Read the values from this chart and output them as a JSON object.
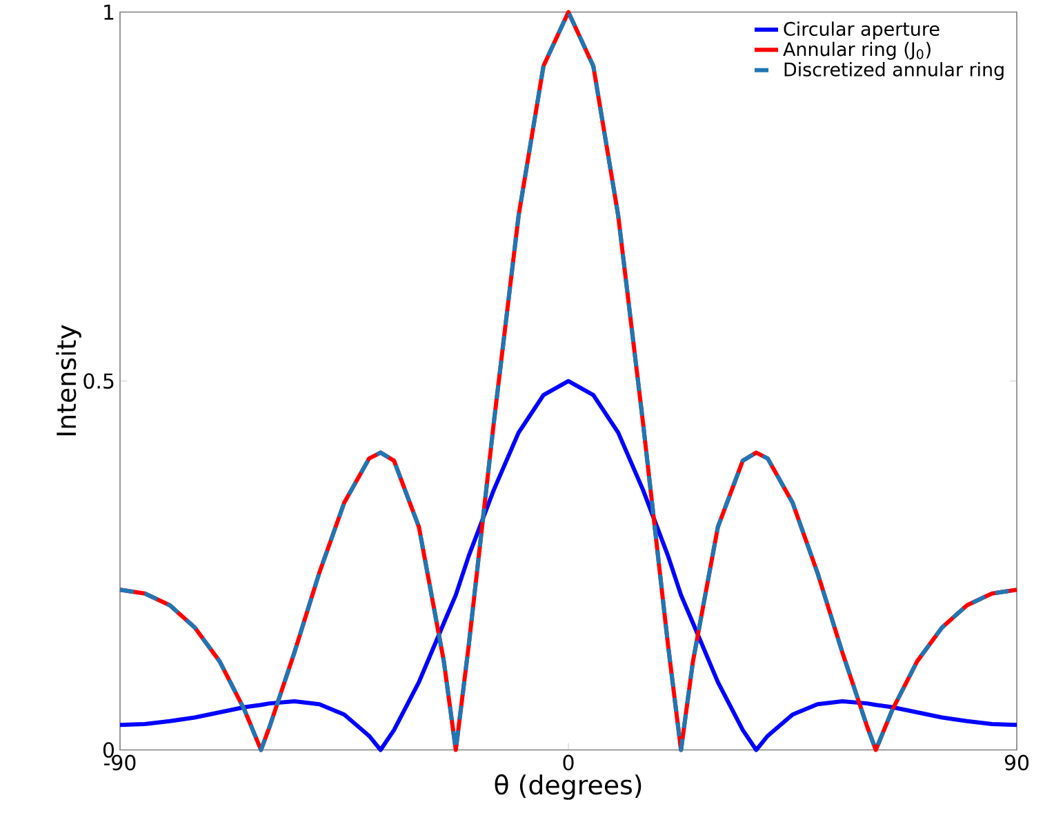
{
  "chart_data": {
    "type": "line",
    "xlabel": "θ (degrees)",
    "ylabel": "Intensity",
    "x": [
      -90,
      -85,
      -80,
      -75,
      -70,
      -65,
      -61.7,
      -60,
      -55,
      -50,
      -45,
      -40,
      -37.7,
      -35,
      -30,
      -25,
      -22.6,
      -20,
      -15,
      -10,
      -5,
      0,
      5,
      10,
      15,
      20,
      22.6,
      25,
      30,
      35,
      37.7,
      40,
      45,
      50,
      55,
      60,
      61.7,
      65,
      70,
      75,
      80,
      85,
      90
    ],
    "xlim": [
      -90,
      90
    ],
    "ylim": [
      0,
      1
    ],
    "xticks": [
      -90,
      0,
      90
    ],
    "yticks": [
      0,
      0.5,
      1
    ],
    "legend": "top right",
    "grid": false,
    "series": [
      {
        "name": "Circular aperture",
        "color": "#0000ff",
        "line_style": "solid",
        "values": [
          0.034,
          0.035,
          0.039,
          0.044,
          0.051,
          0.058,
          0.061,
          0.063,
          0.066,
          0.062,
          0.048,
          0.019,
          0,
          0.027,
          0.092,
          0.172,
          0.21,
          0.263,
          0.352,
          0.43,
          0.481,
          0.5,
          0.481,
          0.43,
          0.352,
          0.263,
          0.21,
          0.172,
          0.092,
          0.027,
          0,
          0.019,
          0.048,
          0.062,
          0.066,
          0.063,
          0.061,
          0.058,
          0.051,
          0.044,
          0.039,
          0.035,
          0.034
        ]
      },
      {
        "name": "Annular ring (J$_{0}$)",
        "color": "#ff0000",
        "line_style": "solid",
        "values": [
          0.217,
          0.212,
          0.196,
          0.166,
          0.12,
          0.054,
          0,
          0.031,
          0.132,
          0.24,
          0.335,
          0.395,
          0.403,
          0.392,
          0.302,
          0.12,
          0,
          0.142,
          0.442,
          0.724,
          0.927,
          1,
          0.927,
          0.724,
          0.442,
          0.142,
          0,
          0.12,
          0.302,
          0.392,
          0.403,
          0.395,
          0.335,
          0.24,
          0.132,
          0.031,
          0,
          0.054,
          0.12,
          0.166,
          0.196,
          0.212,
          0.217
        ]
      },
      {
        "name": "Discretized annular ring",
        "color": "#1f77b4",
        "line_style": "dashed",
        "values": [
          0.217,
          0.212,
          0.196,
          0.166,
          0.12,
          0.054,
          0,
          0.031,
          0.132,
          0.24,
          0.335,
          0.395,
          0.403,
          0.392,
          0.302,
          0.12,
          0,
          0.142,
          0.442,
          0.724,
          0.927,
          1,
          0.927,
          0.724,
          0.442,
          0.142,
          0,
          0.12,
          0.302,
          0.392,
          0.403,
          0.395,
          0.335,
          0.24,
          0.132,
          0.031,
          0,
          0.054,
          0.12,
          0.166,
          0.196,
          0.212,
          0.217
        ]
      }
    ]
  }
}
